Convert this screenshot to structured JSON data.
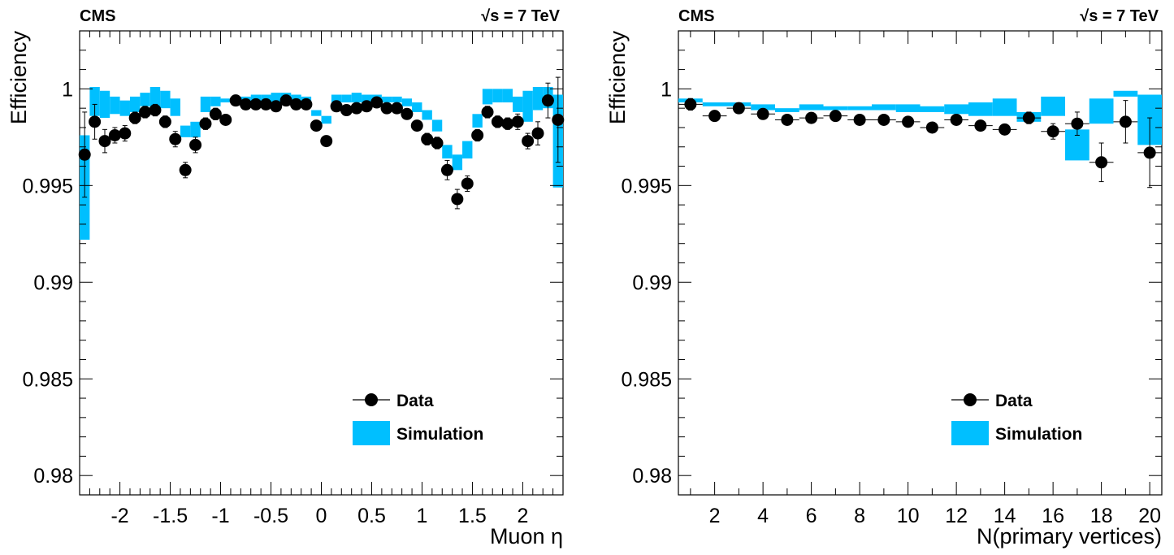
{
  "colors": {
    "simulation": "#00bfff",
    "data": "#000000"
  },
  "chart_data": [
    {
      "type": "scatter",
      "cms_label": "CMS",
      "energy_label": "√s = 7 TeV",
      "xlabel": "Muon η",
      "ylabel": "Efficiency",
      "xlim": [
        -2.4,
        2.4
      ],
      "ylim": [
        0.979,
        1.003
      ],
      "x_ticks": [
        -2,
        -1.5,
        -1,
        -0.5,
        0,
        0.5,
        1,
        1.5,
        2
      ],
      "x_tick_labels": [
        "-2",
        "-1.5",
        "-1",
        "-0.5",
        "0",
        "0.5",
        "1",
        "1.5",
        "2"
      ],
      "y_ticks": [
        0.98,
        0.985,
        0.99,
        0.995,
        1
      ],
      "y_tick_labels": [
        "0.98",
        "0.985",
        "0.99",
        "0.995",
        "1"
      ],
      "legend_placement": "bottom-right",
      "legend": {
        "data": "Data",
        "simulation": "Simulation"
      },
      "bins": [
        -2.4,
        -2.3,
        -2.2,
        -2.1,
        -2.0,
        -1.9,
        -1.8,
        -1.7,
        -1.6,
        -1.5,
        -1.4,
        -1.3,
        -1.2,
        -1.1,
        -1.0,
        -0.9,
        -0.8,
        -0.7,
        -0.6,
        -0.5,
        -0.4,
        -0.3,
        -0.2,
        -0.1,
        0.0,
        0.1,
        0.2,
        0.3,
        0.4,
        0.5,
        0.6,
        0.7,
        0.8,
        0.9,
        1.0,
        1.1,
        1.2,
        1.3,
        1.4,
        1.5,
        1.6,
        1.7,
        1.8,
        1.9,
        2.0,
        2.1,
        2.2,
        2.3,
        2.4
      ],
      "series": [
        {
          "name": "Data",
          "x": [
            -2.35,
            -2.25,
            -2.15,
            -2.05,
            -1.95,
            -1.85,
            -1.75,
            -1.65,
            -1.55,
            -1.45,
            -1.35,
            -1.25,
            -1.15,
            -1.05,
            -0.95,
            -0.85,
            -0.75,
            -0.65,
            -0.55,
            -0.45,
            -0.35,
            -0.25,
            -0.15,
            -0.05,
            0.05,
            0.15,
            0.25,
            0.35,
            0.45,
            0.55,
            0.65,
            0.75,
            0.85,
            0.95,
            1.05,
            1.15,
            1.25,
            1.35,
            1.45,
            1.55,
            1.65,
            1.75,
            1.85,
            1.95,
            2.05,
            2.15,
            2.25,
            2.35
          ],
          "y": [
            0.9966,
            0.9983,
            0.9973,
            0.9976,
            0.9977,
            0.9985,
            0.9988,
            0.9989,
            0.9983,
            0.9974,
            0.9958,
            0.9971,
            0.9982,
            0.9987,
            0.9984,
            0.9994,
            0.9992,
            0.9992,
            0.9992,
            0.9991,
            0.9994,
            0.9992,
            0.9992,
            0.9981,
            0.9973,
            0.9991,
            0.9989,
            0.999,
            0.9991,
            0.9993,
            0.999,
            0.999,
            0.9987,
            0.9981,
            0.9974,
            0.9972,
            0.9958,
            0.9943,
            0.9951,
            0.9976,
            0.9988,
            0.9983,
            0.9982,
            0.9983,
            0.9973,
            0.9977,
            0.9994,
            0.9984
          ],
          "yerr": [
            0.0022,
            0.0009,
            0.0006,
            0.0004,
            0.0004,
            0.0003,
            0.0003,
            0.0003,
            0.0003,
            0.0004,
            0.0004,
            0.0004,
            0.0003,
            0.0003,
            0.0002,
            0.0002,
            0.0002,
            0.0002,
            0.0002,
            0.0002,
            0.0002,
            0.0002,
            0.0002,
            0.0002,
            0.0002,
            0.0002,
            0.0002,
            0.0002,
            0.0002,
            0.0002,
            0.0002,
            0.0002,
            0.0002,
            0.0002,
            0.0003,
            0.0003,
            0.0005,
            0.0005,
            0.0004,
            0.0003,
            0.0003,
            0.0003,
            0.0003,
            0.0004,
            0.0004,
            0.0006,
            0.0009,
            0.0022
          ]
        },
        {
          "name": "Simulation",
          "low": [
            0.9922,
            0.9986,
            0.9985,
            0.9987,
            0.9986,
            0.9988,
            0.9991,
            0.999,
            0.999,
            0.9986,
            0.9975,
            0.9975,
            0.9988,
            0.9991,
            0.9993,
            0.9993,
            0.9993,
            0.9993,
            0.9993,
            0.9993,
            0.9993,
            0.9993,
            0.9993,
            0.9986,
            0.9982,
            0.9993,
            0.9993,
            0.9993,
            0.9993,
            0.9993,
            0.9993,
            0.9993,
            0.9991,
            0.9988,
            0.9984,
            0.9978,
            0.9964,
            0.9958,
            0.9964,
            0.998,
            0.9992,
            0.9993,
            0.9993,
            0.9988,
            0.9983,
            0.9989,
            0.999,
            0.9949
          ],
          "high": [
            0.9976,
            1.0001,
            0.9999,
            0.9996,
            0.9994,
            0.9996,
            0.9998,
            1.0001,
            0.9999,
            0.9995,
            0.9981,
            0.9983,
            0.9996,
            0.9996,
            0.9995,
            0.9995,
            0.9996,
            0.9997,
            0.9997,
            0.9998,
            0.9998,
            0.9997,
            0.9996,
            0.9989,
            0.9986,
            0.9997,
            0.9997,
            0.9998,
            0.9997,
            0.9997,
            0.9996,
            0.9996,
            0.9995,
            0.9993,
            0.9989,
            0.9984,
            0.9971,
            0.9966,
            0.9973,
            0.9987,
            1.0,
            1.0,
            1.0,
            0.9996,
            0.9999,
            1.0001,
            1.0001,
            0.9997
          ]
        }
      ]
    },
    {
      "type": "scatter",
      "cms_label": "CMS",
      "energy_label": "√s = 7 TeV",
      "xlabel": "N(primary vertices)",
      "ylabel": "Efficiency",
      "xlim": [
        0.5,
        20.5
      ],
      "ylim": [
        0.979,
        1.003
      ],
      "x_ticks": [
        2,
        4,
        6,
        8,
        10,
        12,
        14,
        16,
        18,
        20
      ],
      "x_tick_labels": [
        "2",
        "4",
        "6",
        "8",
        "10",
        "12",
        "14",
        "16",
        "18",
        "20"
      ],
      "y_ticks": [
        0.98,
        0.985,
        0.99,
        0.995,
        1
      ],
      "y_tick_labels": [
        "0.98",
        "0.985",
        "0.99",
        "0.995",
        "1"
      ],
      "legend_placement": "bottom-right",
      "legend": {
        "data": "Data",
        "simulation": "Simulation"
      },
      "bins": [
        0.5,
        1.5,
        2.5,
        3.5,
        4.5,
        5.5,
        6.5,
        7.5,
        8.5,
        9.5,
        10.5,
        11.5,
        12.5,
        13.5,
        14.5,
        15.5,
        16.5,
        17.5,
        18.5,
        19.5,
        20.5
      ],
      "series": [
        {
          "name": "Data",
          "x": [
            1,
            2,
            3,
            4,
            5,
            6,
            7,
            8,
            9,
            10,
            11,
            12,
            13,
            14,
            15,
            16,
            17,
            18,
            19,
            20
          ],
          "y": [
            0.9992,
            0.9986,
            0.999,
            0.9987,
            0.9984,
            0.9985,
            0.9986,
            0.9984,
            0.9984,
            0.9983,
            0.998,
            0.9984,
            0.9981,
            0.9979,
            0.9985,
            0.9978,
            0.9982,
            0.9962,
            0.9983,
            0.9967
          ],
          "yerr": [
            0.0003,
            0.0002,
            0.0002,
            0.0002,
            0.0002,
            0.0002,
            0.0002,
            0.0002,
            0.0002,
            0.0002,
            0.0002,
            0.0002,
            0.0002,
            0.0002,
            0.0003,
            0.0004,
            0.0006,
            0.001,
            0.0011,
            0.0018
          ]
        },
        {
          "name": "Simulation",
          "low": [
            0.9993,
            0.9991,
            0.9991,
            0.9989,
            0.9988,
            0.9989,
            0.9989,
            0.9989,
            0.9989,
            0.9988,
            0.9988,
            0.9987,
            0.9986,
            0.9986,
            0.9983,
            0.9986,
            0.9963,
            0.9982,
            0.9996,
            0.9971
          ],
          "high": [
            0.9995,
            0.9993,
            0.9993,
            0.9992,
            0.999,
            0.9992,
            0.9991,
            0.9991,
            0.9992,
            0.9992,
            0.9991,
            0.9992,
            0.9993,
            0.9995,
            0.9988,
            0.9996,
            0.9979,
            0.9995,
            0.9999,
            0.9997
          ]
        }
      ]
    }
  ]
}
